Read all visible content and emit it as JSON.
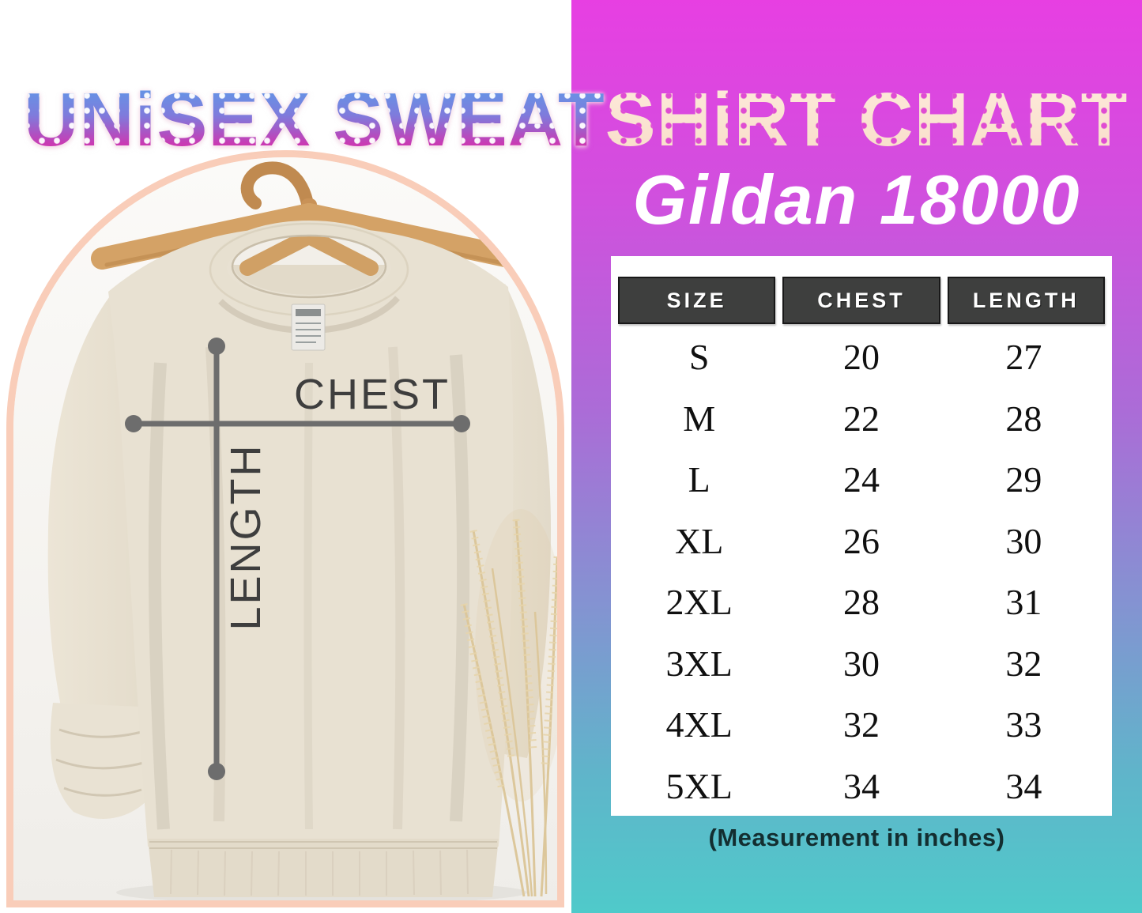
{
  "title": {
    "left": "UNiSEX SWEAT",
    "right": "SHiRT CHART"
  },
  "brand": "Gildan 18000",
  "photo": {
    "chest_label": "CHEST",
    "length_label": "LENGTH"
  },
  "table": {
    "headers": [
      "SIZE",
      "CHEST",
      "LENGTH"
    ]
  },
  "note": "(Measurement in inches)",
  "colors": {
    "panel_gradient_top": "#e73fe2",
    "panel_gradient_mid": "#8691d2",
    "panel_gradient_bottom": "#4fcaca",
    "arch_border": "#f9cdb9",
    "header_box": "#3e3f3e",
    "header_text": "#ffffff",
    "title_gradient_top": "#58a0ea",
    "title_gradient_bottom": "#e2219b",
    "title_right_cream": "#fdeadb",
    "sweatshirt_beige": "#e8e1d2",
    "hanger_wood": "#d4a266",
    "measure_line_gray": "#6d6d6d",
    "note_text": "#132e30"
  },
  "chart_data": {
    "type": "table",
    "title": "UNiSEX SWEATSHIRT CHART",
    "subtitle": "Gildan 18000",
    "columns": [
      "SIZE",
      "CHEST",
      "LENGTH"
    ],
    "units": "inches",
    "rows": [
      [
        "S",
        20,
        27
      ],
      [
        "M",
        22,
        28
      ],
      [
        "L",
        24,
        29
      ],
      [
        "XL",
        26,
        30
      ],
      [
        "2XL",
        28,
        31
      ],
      [
        "3XL",
        30,
        32
      ],
      [
        "4XL",
        32,
        33
      ],
      [
        "5XL",
        34,
        34
      ]
    ],
    "note": "(Measurement in inches)"
  }
}
